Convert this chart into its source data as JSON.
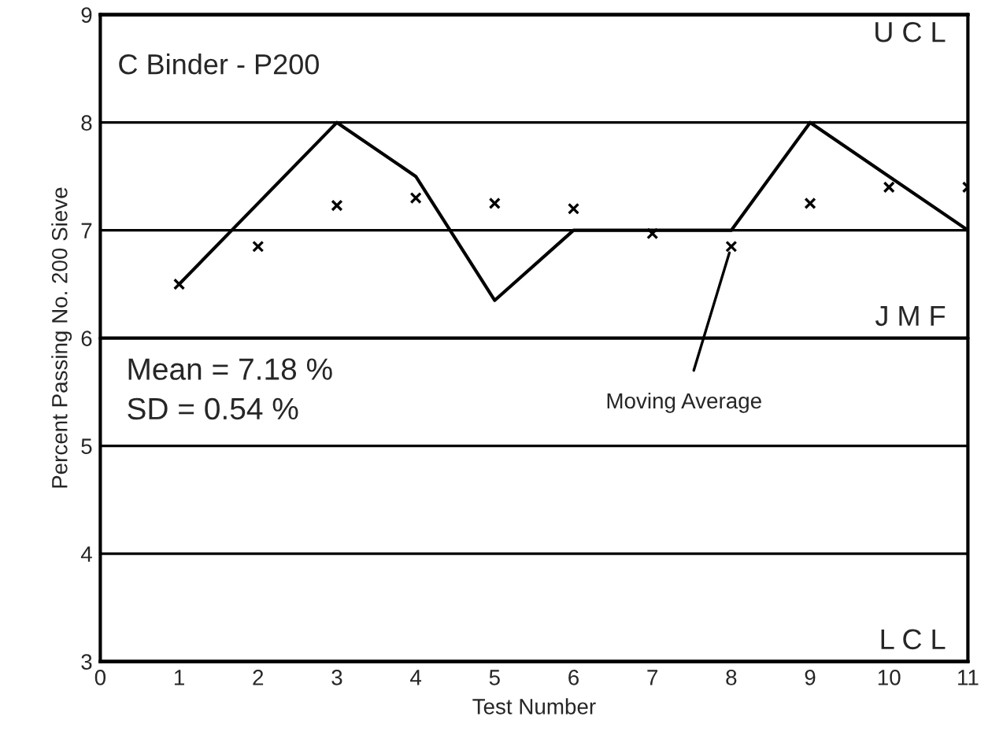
{
  "chart_data": {
    "type": "line",
    "xlabel": "Test Number",
    "ylabel": "Percent Passing No. 200 Sieve",
    "x": [
      1,
      2,
      3,
      4,
      5,
      6,
      7,
      8,
      9,
      10,
      11
    ],
    "series": [
      {
        "type": "line",
        "color": "#000000",
        "marker": "none",
        "line_style": "solid",
        "values": [
          6.5,
          7.25,
          8.0,
          7.5,
          6.35,
          7.0,
          7.0,
          7.0,
          8.0,
          7.5,
          7.0
        ]
      },
      {
        "type": "scatter",
        "color": "#000000",
        "marker": "cross",
        "values": [
          6.5,
          6.85,
          7.23,
          7.3,
          7.25,
          7.2,
          6.97,
          6.85,
          7.25,
          7.4,
          7.4
        ]
      }
    ],
    "xlim": [
      0,
      11
    ],
    "xticks": [
      0,
      1,
      2,
      3,
      4,
      5,
      6,
      7,
      8,
      9,
      10,
      11
    ],
    "ylim": [
      3,
      9
    ],
    "yticks": [
      3,
      4,
      5,
      6,
      7,
      8,
      9
    ],
    "grid": "y",
    "ref_lines": [
      {
        "axis": "y",
        "value": 9,
        "label": "U C L"
      },
      {
        "axis": "y",
        "value": 6,
        "label": "J M F"
      },
      {
        "axis": "y",
        "value": 3,
        "label": "L C L"
      }
    ],
    "annotations": [
      "C Binder - P200",
      "Mean = 7.18 %\nSD = 0.54 %",
      {
        "text": "Moving Average",
        "x": 8,
        "y": 6.85
      }
    ]
  }
}
